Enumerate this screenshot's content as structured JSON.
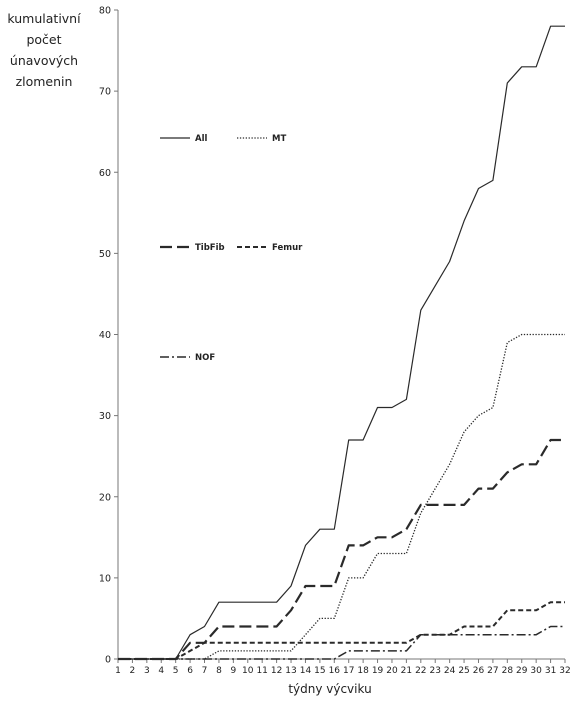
{
  "chart_data": {
    "type": "line",
    "title": "",
    "xlabel": "týdny výcviku",
    "ylabel_lines": [
      "kumulativní",
      "počet",
      "únavových",
      "zlomenin"
    ],
    "x": [
      1,
      2,
      3,
      4,
      5,
      6,
      7,
      8,
      9,
      10,
      11,
      12,
      13,
      14,
      15,
      16,
      17,
      18,
      19,
      20,
      21,
      22,
      23,
      24,
      25,
      26,
      27,
      28,
      29,
      30,
      31,
      32
    ],
    "xlim": [
      1,
      32
    ],
    "ylim": [
      0,
      80
    ],
    "yticks": [
      0,
      10,
      20,
      30,
      40,
      50,
      60,
      70,
      80
    ],
    "grid": false,
    "legend_position": "left, stacked inside plot",
    "series": [
      {
        "name": "All",
        "style": "solid",
        "values": [
          0,
          0,
          0,
          0,
          0,
          3,
          4,
          7,
          7,
          7,
          7,
          7,
          9,
          14,
          16,
          16,
          27,
          27,
          31,
          31,
          32,
          43,
          46,
          49,
          54,
          58,
          59,
          71,
          73,
          73,
          78,
          78
        ]
      },
      {
        "name": "MT",
        "style": "dotted",
        "values": [
          0,
          0,
          0,
          0,
          0,
          0,
          0,
          1,
          1,
          1,
          1,
          1,
          1,
          3,
          5,
          5,
          10,
          10,
          13,
          13,
          13,
          18,
          21,
          24,
          28,
          30,
          31,
          39,
          40,
          40,
          40,
          40
        ]
      },
      {
        "name": "TibFib",
        "style": "longdash",
        "values": [
          0,
          0,
          0,
          0,
          0,
          2,
          2,
          4,
          4,
          4,
          4,
          4,
          6,
          9,
          9,
          9,
          14,
          14,
          15,
          15,
          16,
          19,
          19,
          19,
          19,
          21,
          21,
          23,
          24,
          24,
          27,
          27
        ]
      },
      {
        "name": "Femur",
        "style": "shortdash",
        "values": [
          0,
          0,
          0,
          0,
          0,
          1,
          2,
          2,
          2,
          2,
          2,
          2,
          2,
          2,
          2,
          2,
          2,
          2,
          2,
          2,
          2,
          3,
          3,
          3,
          4,
          4,
          4,
          6,
          6,
          6,
          7,
          7
        ]
      },
      {
        "name": "NOF",
        "style": "dashdot",
        "values": [
          0,
          0,
          0,
          0,
          0,
          0,
          0,
          0,
          0,
          0,
          0,
          0,
          0,
          0,
          0,
          0,
          1,
          1,
          1,
          1,
          1,
          3,
          3,
          3,
          3,
          3,
          3,
          3,
          3,
          3,
          4,
          4
        ]
      }
    ]
  }
}
